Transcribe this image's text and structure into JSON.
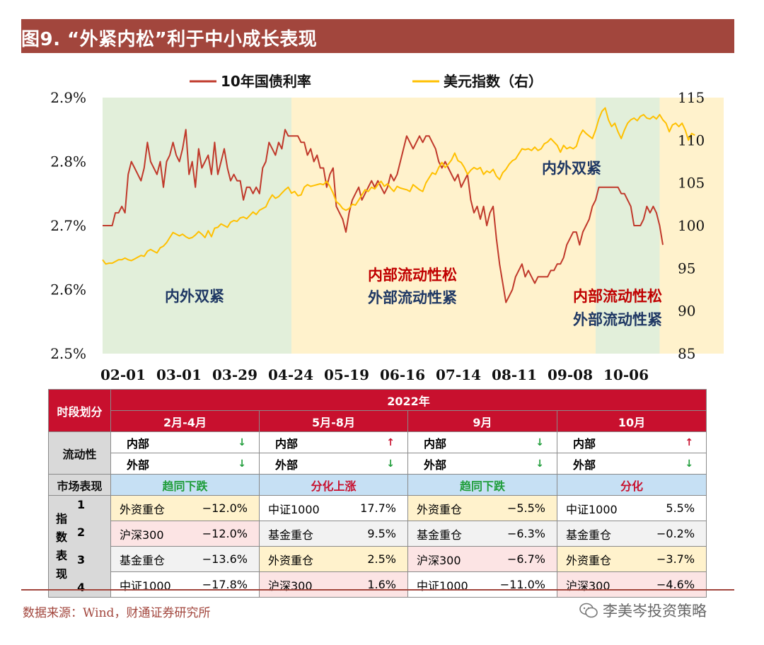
{
  "figure_title": "图9. “外紧内松”利于中小成长表现",
  "source": "数据来源：Wind，财通证券研究所",
  "watermark": "李美岑投资策略",
  "chart_data": {
    "type": "line",
    "title": "",
    "legend": [
      "10年国债利率",
      "美元指数（右）"
    ],
    "x_tick_labels": [
      "02-01",
      "03-01",
      "03-29",
      "04-24",
      "05-19",
      "06-16",
      "07-14",
      "08-11",
      "09-08",
      "10-06"
    ],
    "y_left": {
      "ticks": [
        "2.9%",
        "2.8%",
        "2.7%",
        "2.6%",
        "2.5%"
      ],
      "range": [
        2.5,
        2.9
      ]
    },
    "y_right": {
      "ticks": [
        "115",
        "110",
        "105",
        "100",
        "95",
        "90",
        "85"
      ],
      "range": [
        85,
        115
      ]
    },
    "regions": [
      {
        "from": 0,
        "to": 59,
        "color": "#e2efda"
      },
      {
        "from": 59,
        "to": 154,
        "color": "#fff2cc"
      },
      {
        "from": 154,
        "to": 174,
        "color": "#e2efda"
      },
      {
        "from": 174,
        "to": 194,
        "color": "#fff2cc"
      }
    ],
    "annotations": [
      {
        "text": "内外双紧",
        "color": "#1f3864"
      },
      {
        "text": "内部流动性松",
        "color": "#c00000"
      },
      {
        "text": "外部流动性紧",
        "color": "#1f3864"
      },
      {
        "text": "内外双紧",
        "color": "#1f3864"
      },
      {
        "text": "内部流动性松",
        "color": "#c00000"
      },
      {
        "text": "外部流动性紧",
        "color": "#1f3864"
      }
    ],
    "series": [
      {
        "name": "10年国债利率",
        "color": "#c0392b",
        "axis": "left",
        "values": [
          2.7,
          2.7,
          2.7,
          2.7,
          2.72,
          2.72,
          2.73,
          2.72,
          2.78,
          2.8,
          2.79,
          2.78,
          2.77,
          2.79,
          2.83,
          2.8,
          2.79,
          2.78,
          2.8,
          2.76,
          2.8,
          2.81,
          2.83,
          2.81,
          2.8,
          2.82,
          2.85,
          2.78,
          2.8,
          2.76,
          2.82,
          2.79,
          2.8,
          2.81,
          2.78,
          2.83,
          2.78,
          2.8,
          2.82,
          2.79,
          2.77,
          2.78,
          2.77,
          2.77,
          2.74,
          2.76,
          2.76,
          2.75,
          2.76,
          2.75,
          2.79,
          2.8,
          2.83,
          2.82,
          2.81,
          2.83,
          2.82,
          2.85,
          2.84,
          2.84,
          2.84,
          2.84,
          2.83,
          2.83,
          2.81,
          2.82,
          2.8,
          2.81,
          2.79,
          2.79,
          2.76,
          2.78,
          2.79,
          2.73,
          2.72,
          2.71,
          2.69,
          2.72,
          2.74,
          2.75,
          2.76,
          2.74,
          2.75,
          2.76,
          2.77,
          2.76,
          2.77,
          2.76,
          2.75,
          2.76,
          2.78,
          2.77,
          2.78,
          2.8,
          2.82,
          2.84,
          2.83,
          2.82,
          2.83,
          2.84,
          2.83,
          2.84,
          2.84,
          2.83,
          2.82,
          2.8,
          2.79,
          2.8,
          2.79,
          2.78,
          2.77,
          2.78,
          2.76,
          2.77,
          2.78,
          2.74,
          2.72,
          2.73,
          2.71,
          2.73,
          2.7,
          2.72,
          2.73,
          2.68,
          2.64,
          2.61,
          2.58,
          2.59,
          2.6,
          2.62,
          2.63,
          2.64,
          2.62,
          2.63,
          2.62,
          2.61,
          2.62,
          2.62,
          2.62,
          2.62,
          2.63,
          2.63,
          2.64,
          2.64,
          2.65,
          2.67,
          2.68,
          2.69,
          2.69,
          2.67,
          2.69,
          2.7,
          2.71,
          2.73,
          2.74,
          2.76,
          2.76,
          2.76,
          2.76,
          2.76,
          2.76,
          2.76,
          2.75,
          2.75,
          2.74,
          2.73,
          2.7,
          2.7,
          2.7,
          2.71,
          2.73,
          2.72,
          2.73,
          2.72,
          2.7,
          2.67
        ]
      },
      {
        "name": "美元指数（右）",
        "color": "#ffc000",
        "axis": "right",
        "values": [
          96.0,
          95.5,
          95.6,
          95.6,
          95.8,
          96.0,
          96.0,
          96.2,
          96.0,
          95.9,
          96.1,
          96.3,
          96.5,
          96.4,
          97.0,
          97.2,
          97.0,
          96.8,
          97.4,
          97.6,
          98.0,
          98.6,
          99.2,
          99.0,
          98.8,
          99.0,
          98.7,
          98.5,
          98.6,
          98.9,
          99.3,
          99.0,
          98.6,
          99.4,
          98.7,
          99.7,
          99.8,
          100.2,
          100.0,
          99.8,
          100.4,
          100.6,
          100.5,
          100.9,
          101.0,
          100.8,
          101.2,
          101.6,
          101.3,
          101.8,
          102.0,
          102.2,
          103.0,
          103.6,
          103.2,
          103.4,
          103.8,
          104.2,
          104.5,
          103.8,
          104.0,
          103.5,
          103.6,
          104.5,
          104.8,
          104.6,
          104.7,
          104.8,
          104.9,
          104.8,
          105.2,
          104.6,
          103.8,
          102.8,
          102.5,
          102.0,
          101.8,
          102.0,
          102.5,
          102.4,
          103.0,
          103.6,
          104.2,
          104.0,
          104.5,
          104.3,
          104.8,
          105.2,
          104.6,
          104.9,
          104.4,
          104.0,
          104.6,
          104.4,
          104.3,
          104.2,
          104.0,
          104.8,
          104.5,
          104.2,
          104.0,
          105.0,
          105.6,
          106.2,
          106.0,
          106.8,
          107.4,
          106.8,
          107.2,
          107.7,
          108.5,
          107.6,
          107.4,
          106.8,
          106.0,
          106.5,
          106.8,
          106.6,
          106.8,
          106.0,
          106.4,
          106.2,
          106.6,
          105.8,
          105.4,
          106.2,
          106.6,
          107.2,
          107.6,
          107.8,
          108.4,
          109.0,
          108.9,
          109.0,
          108.8,
          109.2,
          108.8,
          109.0,
          109.6,
          109.8,
          110.2,
          109.8,
          109.4,
          108.6,
          109.4,
          109.0,
          109.2,
          109.0,
          109.3,
          110.5,
          111.2,
          110.8,
          110.5,
          110.2,
          111.2,
          112.5,
          113.4,
          113.8,
          112.4,
          111.6,
          112.0,
          111.0,
          110.2,
          111.2,
          112.0,
          112.4,
          112.6,
          112.3,
          112.8,
          113.0,
          112.6,
          112.5,
          112.8,
          112.5,
          113.0,
          112.4,
          112.0,
          111.0,
          111.8,
          112.0,
          111.6,
          112.0,
          111.2,
          110.0,
          110.8,
          110.6
        ]
      }
    ]
  },
  "table": {
    "period_label": "时段划分",
    "year_label": "2022年",
    "periods": [
      "2月-4月",
      "5月-8月",
      "9月",
      "10月"
    ],
    "liquidity_label": "流动性",
    "inner_label": "内部",
    "outer_label": "外部",
    "liquidity": [
      {
        "inner": "↓",
        "inner_color": "#1f9d3a",
        "outer": "↓",
        "outer_color": "#1f9d3a"
      },
      {
        "inner": "↑",
        "inner_color": "#c8102e",
        "outer": "↓",
        "outer_color": "#1f9d3a"
      },
      {
        "inner": "↓",
        "inner_color": "#1f9d3a",
        "outer": "↓",
        "outer_color": "#1f9d3a"
      },
      {
        "inner": "↑",
        "inner_color": "#c8102e",
        "outer": "↓",
        "outer_color": "#1f9d3a"
      }
    ],
    "market_label": "市场表现",
    "market": [
      {
        "text": "趋同下跌",
        "color": "#1f9d3a"
      },
      {
        "text": "分化上涨",
        "color": "#c8102e"
      },
      {
        "text": "趋同下跌",
        "color": "#1f9d3a"
      },
      {
        "text": "分化",
        "color": "#c8102e"
      }
    ],
    "index_label_chars": [
      "指",
      "数",
      "表",
      "现"
    ],
    "ranks": [
      "1",
      "2",
      "3",
      "4"
    ],
    "index_rows": [
      [
        {
          "name": "外资重仓",
          "value": "−12.0%"
        },
        {
          "name": "中证1000",
          "value": "17.7%"
        },
        {
          "name": "外资重仓",
          "value": "−5.5%"
        },
        {
          "name": "中证1000",
          "value": "5.5%"
        }
      ],
      [
        {
          "name": "沪深300",
          "value": "−12.0%"
        },
        {
          "name": "基金重仓",
          "value": "9.5%"
        },
        {
          "name": "基金重仓",
          "value": "−6.3%"
        },
        {
          "name": "基金重仓",
          "value": "−0.2%"
        }
      ],
      [
        {
          "name": "基金重仓",
          "value": "−13.6%"
        },
        {
          "name": "外资重仓",
          "value": "2.5%"
        },
        {
          "name": "沪深300",
          "value": "−6.7%"
        },
        {
          "name": "外资重仓",
          "value": "−3.7%"
        }
      ],
      [
        {
          "name": "中证1000",
          "value": "−17.8%"
        },
        {
          "name": "沪深300",
          "value": "1.6%"
        },
        {
          "name": "中证1000",
          "value": "−11.0%"
        },
        {
          "name": "沪深300",
          "value": "−4.6%"
        }
      ]
    ]
  }
}
